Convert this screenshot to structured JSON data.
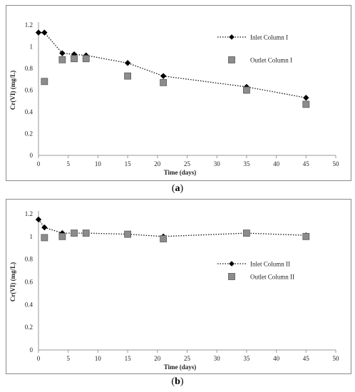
{
  "chart_data": [
    {
      "type": "line",
      "panel_label": "a",
      "xlabel": "Time (days)",
      "ylabel": "Cr(VI) (mg/L)",
      "xlim": [
        0,
        50
      ],
      "ylim": [
        0,
        1.2
      ],
      "x_ticks": [
        "0",
        "5",
        "10",
        "15",
        "20",
        "25",
        "30",
        "35",
        "40",
        "45",
        "50"
      ],
      "y_ticks": [
        "0",
        "0.2",
        "0.4",
        "0.6",
        "0.8",
        "1",
        "1.2"
      ],
      "grid": false,
      "legend_position": "top-right",
      "series": [
        {
          "name": "Inlet Column I",
          "style": "dotted line with diamond markers",
          "color": "#000000",
          "x": [
            0,
            1,
            4,
            6,
            8,
            15,
            21,
            35,
            45
          ],
          "y": [
            1.13,
            1.13,
            0.94,
            0.93,
            0.92,
            0.85,
            0.73,
            0.63,
            0.53
          ]
        },
        {
          "name": "Outlet Column I",
          "style": "square markers",
          "color": "#8c8c8c",
          "x": [
            1,
            4,
            6,
            8,
            15,
            21,
            35,
            45
          ],
          "y": [
            0.68,
            0.88,
            0.89,
            0.89,
            0.73,
            0.67,
            0.6,
            0.47
          ]
        }
      ]
    },
    {
      "type": "line",
      "panel_label": "b",
      "xlabel": "Time (days)",
      "ylabel": "Cr(VI) (mg/L)",
      "xlim": [
        0,
        50
      ],
      "ylim": [
        0,
        1.2
      ],
      "x_ticks": [
        "0",
        "5",
        "10",
        "15",
        "20",
        "25",
        "30",
        "35",
        "40",
        "45",
        "50"
      ],
      "y_ticks": [
        "0",
        "0.2",
        "0.4",
        "0.6",
        "0.8",
        "1",
        "1.2"
      ],
      "grid": false,
      "legend_position": "right",
      "series": [
        {
          "name": "Inlet Column II",
          "style": "dotted line with diamond markers",
          "color": "#000000",
          "x": [
            0,
            1,
            4,
            6,
            8,
            15,
            21,
            35,
            45
          ],
          "y": [
            1.15,
            1.08,
            1.03,
            1.03,
            1.03,
            1.02,
            1.0,
            1.03,
            1.01
          ]
        },
        {
          "name": "Outlet Column II",
          "style": "square markers",
          "color": "#8c8c8c",
          "x": [
            1,
            4,
            6,
            8,
            15,
            21,
            35,
            45
          ],
          "y": [
            0.99,
            1.0,
            1.03,
            1.03,
            1.02,
            0.98,
            1.03,
            1.0
          ]
        }
      ]
    }
  ]
}
